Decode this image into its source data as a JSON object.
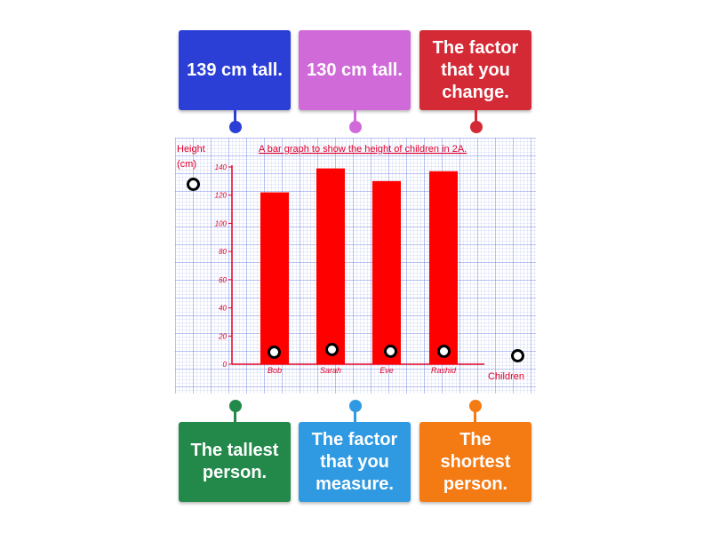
{
  "labels": {
    "top_left": {
      "text": "139 cm tall.",
      "color": "#2b3fd6"
    },
    "top_middle": {
      "text": "130 cm tall.",
      "color": "#d06ad9"
    },
    "top_right": {
      "text": "The factor that you change.",
      "color": "#d42a36"
    },
    "bottom_left": {
      "text": "The tallest person.",
      "color": "#23894a"
    },
    "bottom_middle": {
      "text": "The factor that you measure.",
      "color": "#2f9ae2"
    },
    "bottom_right": {
      "text": "The shortest person.",
      "color": "#f47a14"
    }
  },
  "graph": {
    "title": "A bar graph to show the height of children in 2A.",
    "ylabel_line1": "Height",
    "ylabel_line2": "(cm)",
    "xlabel": "Children",
    "bar_color": "#ff0000",
    "ink_color": "#e0002a",
    "grid_color": "#3a56d8"
  },
  "chart_data": {
    "type": "bar",
    "title": "A bar graph to show the height of children in 2A.",
    "xlabel": "Children",
    "ylabel": "Height (cm)",
    "categories": [
      "Bob",
      "Sarah",
      "Eve",
      "Rashid"
    ],
    "values": [
      122,
      139,
      130,
      137
    ],
    "yticks": [
      0,
      20,
      40,
      60,
      80,
      100,
      120,
      140
    ],
    "ylim": [
      0,
      140
    ],
    "grid": true
  }
}
